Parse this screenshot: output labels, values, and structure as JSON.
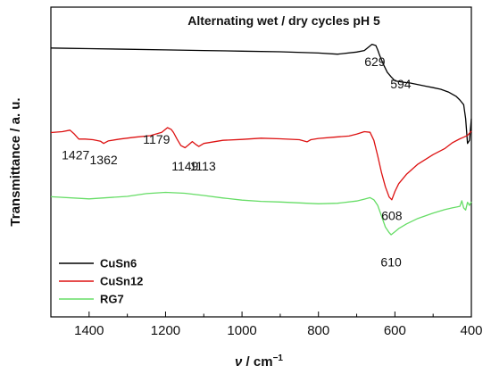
{
  "chart_data": {
    "type": "line",
    "title": "Alternating wet / dry cycles pH 5",
    "xlabel_var": "ν",
    "xlabel_unit": " / cm",
    "xlabel_sup": "−1",
    "ylabel": "Transmittance / a. u.",
    "xlim": [
      1500,
      400
    ],
    "x_reversed": true,
    "ylim": [
      0,
      1
    ],
    "x_ticks": [
      1400,
      1200,
      1000,
      800,
      600,
      400
    ],
    "y_ticks_labeled": false,
    "grid": false,
    "legend_position": "bottom-left",
    "series": [
      {
        "name": "CuSn6",
        "color": "#000000",
        "x": [
          1500,
          1450,
          1400,
          1300,
          1200,
          1100,
          1000,
          900,
          800,
          750,
          700,
          680,
          660,
          650,
          645,
          640,
          630,
          620,
          610,
          600,
          580,
          560,
          540,
          520,
          500,
          480,
          460,
          440,
          430,
          420,
          415,
          410,
          405,
          400
        ],
        "y": [
          0.868,
          0.867,
          0.866,
          0.864,
          0.862,
          0.86,
          0.858,
          0.856,
          0.852,
          0.848,
          0.855,
          0.86,
          0.88,
          0.876,
          0.862,
          0.845,
          0.815,
          0.79,
          0.775,
          0.762,
          0.758,
          0.755,
          0.75,
          0.745,
          0.74,
          0.735,
          0.726,
          0.712,
          0.7,
          0.685,
          0.64,
          0.56,
          0.57,
          0.64
        ]
      },
      {
        "name": "CuSn12",
        "color": "#dd1111",
        "x": [
          1500,
          1470,
          1450,
          1440,
          1427,
          1410,
          1390,
          1370,
          1362,
          1350,
          1320,
          1280,
          1240,
          1210,
          1195,
          1185,
          1179,
          1170,
          1160,
          1149,
          1140,
          1130,
          1120,
          1113,
          1100,
          1050,
          1000,
          950,
          900,
          850,
          830,
          820,
          800,
          760,
          720,
          700,
          680,
          665,
          655,
          645,
          635,
          625,
          615,
          608,
          600,
          590,
          570,
          540,
          500,
          470,
          450,
          430,
          420,
          410,
          400
        ],
        "y": [
          0.595,
          0.598,
          0.603,
          0.592,
          0.574,
          0.574,
          0.572,
          0.567,
          0.56,
          0.568,
          0.574,
          0.58,
          0.585,
          0.596,
          0.611,
          0.605,
          0.595,
          0.574,
          0.553,
          0.546,
          0.555,
          0.566,
          0.556,
          0.55,
          0.56,
          0.57,
          0.573,
          0.577,
          0.575,
          0.572,
          0.565,
          0.572,
          0.576,
          0.58,
          0.584,
          0.59,
          0.598,
          0.596,
          0.57,
          0.52,
          0.465,
          0.42,
          0.387,
          0.378,
          0.405,
          0.43,
          0.46,
          0.493,
          0.524,
          0.543,
          0.562,
          0.575,
          0.58,
          0.586,
          0.6
        ]
      },
      {
        "name": "RG7",
        "color": "#66dd66",
        "x": [
          1500,
          1400,
          1300,
          1250,
          1200,
          1150,
          1100,
          1050,
          1000,
          950,
          900,
          850,
          800,
          750,
          700,
          680,
          665,
          655,
          645,
          635,
          625,
          615,
          610,
          600,
          590,
          570,
          540,
          500,
          470,
          450,
          430,
          425,
          420,
          415,
          410,
          405,
          400
        ],
        "y": [
          0.388,
          0.381,
          0.389,
          0.398,
          0.402,
          0.399,
          0.392,
          0.384,
          0.377,
          0.373,
          0.371,
          0.368,
          0.365,
          0.367,
          0.374,
          0.38,
          0.385,
          0.378,
          0.36,
          0.325,
          0.29,
          0.272,
          0.265,
          0.275,
          0.285,
          0.3,
          0.318,
          0.335,
          0.346,
          0.352,
          0.357,
          0.375,
          0.352,
          0.345,
          0.37,
          0.36,
          0.372
        ]
      }
    ],
    "annotations": [
      {
        "text": "629",
        "x": 629,
        "y": 0.81
      },
      {
        "text": "594",
        "x": 594,
        "y": 0.75
      },
      {
        "text": "1427",
        "x": 1427,
        "y": 0.56
      },
      {
        "text": "1362",
        "x": 1362,
        "y": 0.545
      },
      {
        "text": "1179",
        "x": 1179,
        "y": 0.565
      },
      {
        "text": "1149",
        "x": 1149,
        "y": 0.53
      },
      {
        "text": "1113",
        "x": 1113,
        "y": 0.53
      },
      {
        "text": "608",
        "x": 608,
        "y": 0.365
      },
      {
        "text": "610",
        "x": 610,
        "y": 0.25
      }
    ]
  }
}
